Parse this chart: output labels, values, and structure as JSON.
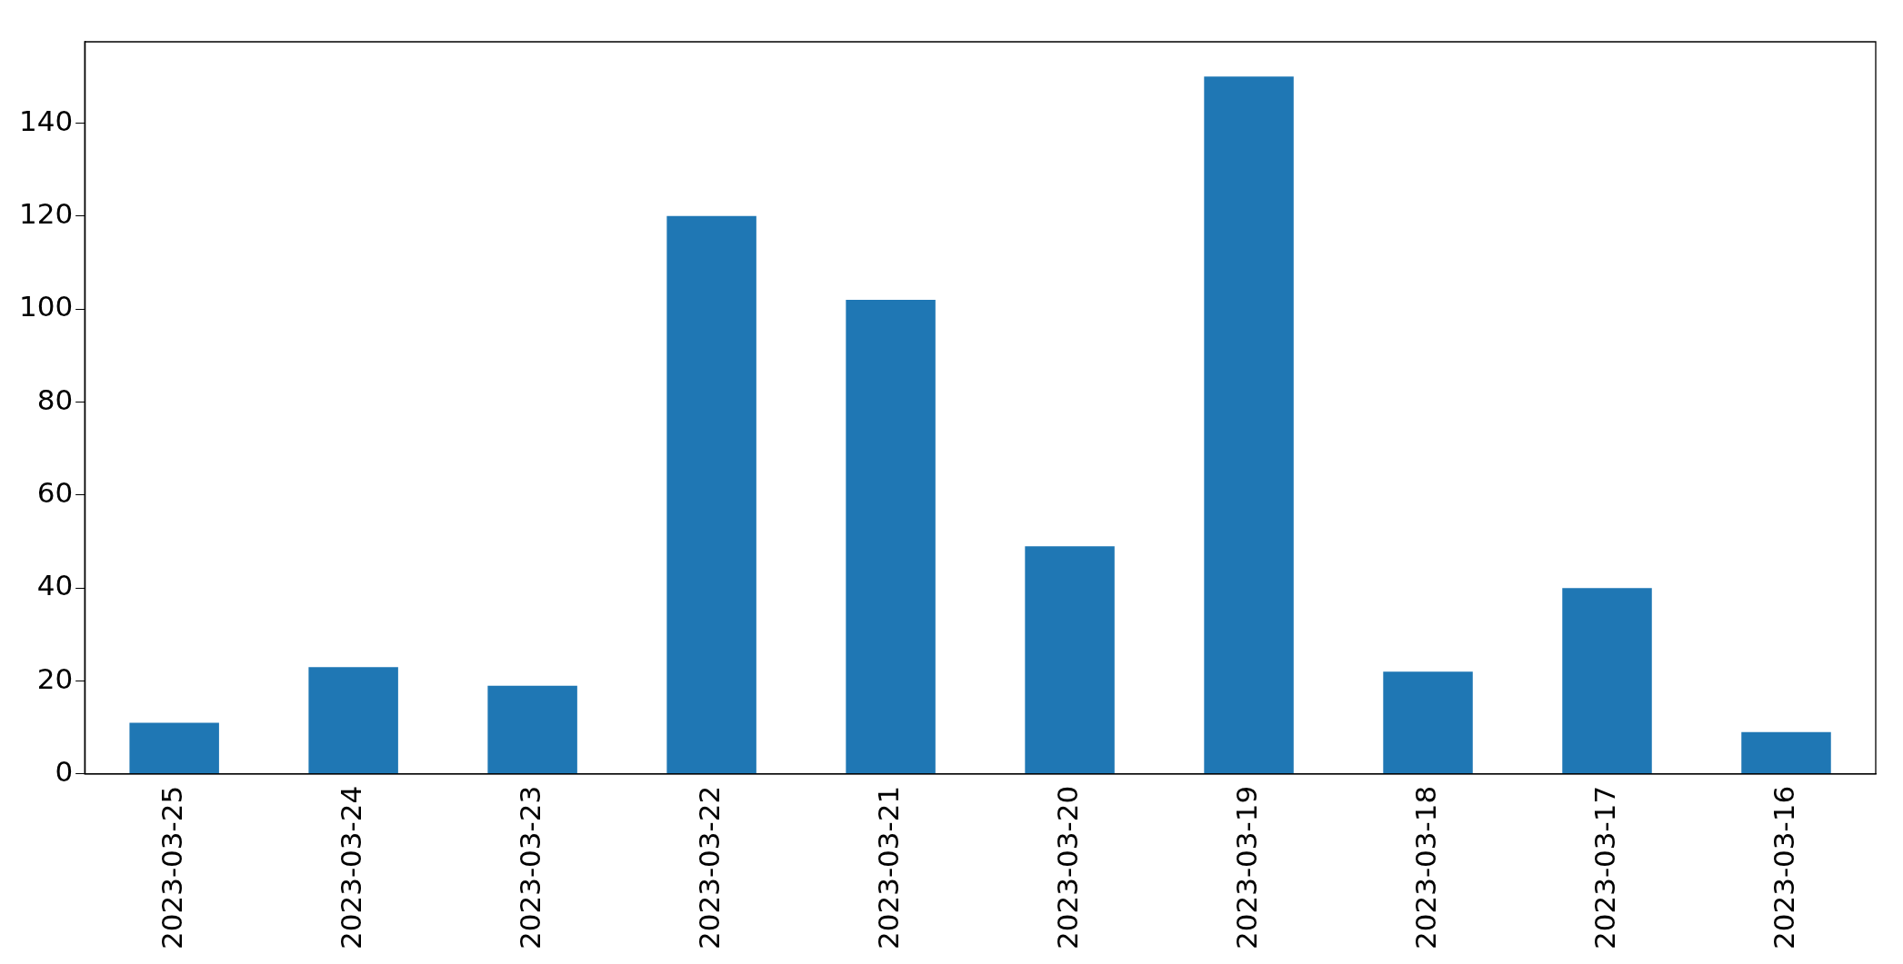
{
  "chart_data": {
    "type": "bar",
    "categories": [
      "2023-03-25",
      "2023-03-24",
      "2023-03-23",
      "2023-03-22",
      "2023-03-21",
      "2023-03-20",
      "2023-03-19",
      "2023-03-18",
      "2023-03-17",
      "2023-03-16"
    ],
    "values": [
      11,
      23,
      19,
      120,
      102,
      49,
      150,
      22,
      40,
      9
    ],
    "color": "#1f77b4",
    "ylim": [
      0,
      157.5
    ],
    "yticks": [
      0,
      20,
      40,
      60,
      80,
      100,
      120,
      140
    ],
    "grid": false
  }
}
